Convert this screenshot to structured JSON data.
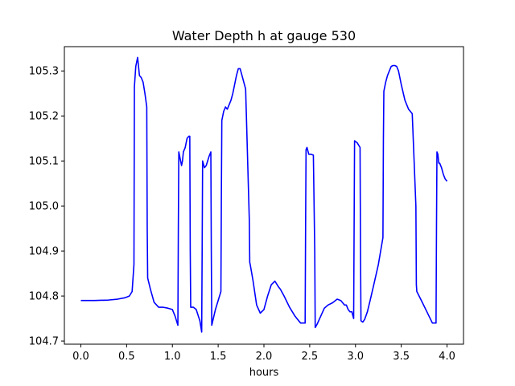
{
  "chart_data": {
    "type": "line",
    "title": "Water Depth h at gauge 530",
    "xlabel": "hours",
    "ylabel": "",
    "xlim": [
      -0.18,
      4.18
    ],
    "ylim": [
      104.693,
      105.354
    ],
    "xticks": [
      0.0,
      0.5,
      1.0,
      1.5,
      2.0,
      2.5,
      3.0,
      3.5,
      4.0
    ],
    "xtick_labels": [
      "0.0",
      "0.5",
      "1.0",
      "1.5",
      "2.0",
      "2.5",
      "3.0",
      "3.5",
      "4.0"
    ],
    "yticks": [
      104.7,
      104.8,
      104.9,
      105.0,
      105.1,
      105.2,
      105.3
    ],
    "ytick_labels": [
      "104.7",
      "104.8",
      "104.9",
      "105.0",
      "105.1",
      "105.2",
      "105.3"
    ],
    "grid": false,
    "legend": "none",
    "series": [
      {
        "color": "#0000ff",
        "x": [
          0.0,
          0.15,
          0.3,
          0.4,
          0.48,
          0.53,
          0.56,
          0.58,
          0.585,
          0.6,
          0.62,
          0.64,
          0.66,
          0.68,
          0.7,
          0.72,
          0.725,
          0.73,
          0.76,
          0.8,
          0.85,
          0.9,
          0.95,
          1.0,
          1.03,
          1.06,
          1.065,
          1.07,
          1.09,
          1.1,
          1.11,
          1.12,
          1.14,
          1.16,
          1.18,
          1.19,
          1.195,
          1.2,
          1.23,
          1.26,
          1.3,
          1.32,
          1.325,
          1.33,
          1.35,
          1.37,
          1.4,
          1.42,
          1.425,
          1.43,
          1.47,
          1.53,
          1.535,
          1.54,
          1.56,
          1.58,
          1.6,
          1.62,
          1.64,
          1.66,
          1.68,
          1.7,
          1.72,
          1.74,
          1.76,
          1.8,
          1.84,
          1.845,
          1.85,
          1.88,
          1.92,
          1.96,
          2.0,
          2.04,
          2.08,
          2.12,
          2.16,
          2.18,
          2.22,
          2.28,
          2.34,
          2.4,
          2.45,
          2.455,
          2.46,
          2.47,
          2.49,
          2.51,
          2.54,
          2.555,
          2.56,
          2.58,
          2.62,
          2.66,
          2.7,
          2.75,
          2.8,
          2.84,
          2.88,
          2.9,
          2.92,
          2.94,
          2.96,
          2.98,
          2.985,
          2.99,
          3.02,
          3.05,
          3.055,
          3.06,
          3.08,
          3.1,
          3.13,
          3.16,
          3.2,
          3.25,
          3.3,
          3.305,
          3.31,
          3.33,
          3.35,
          3.37,
          3.39,
          3.41,
          3.43,
          3.45,
          3.47,
          3.5,
          3.54,
          3.58,
          3.62,
          3.66,
          3.665,
          3.67,
          3.72,
          3.78,
          3.84,
          3.88,
          3.885,
          3.89,
          3.9,
          3.91,
          3.92,
          3.94,
          3.96,
          3.98,
          4.0
        ],
        "y": [
          104.79,
          104.79,
          104.791,
          104.793,
          104.796,
          104.8,
          104.81,
          104.87,
          105.265,
          105.31,
          105.33,
          105.29,
          105.285,
          105.275,
          105.25,
          105.22,
          104.95,
          104.84,
          104.815,
          104.786,
          104.775,
          104.775,
          104.773,
          104.77,
          104.755,
          104.735,
          104.95,
          105.12,
          105.1,
          105.09,
          105.1,
          105.12,
          105.13,
          105.15,
          105.155,
          105.155,
          104.9,
          104.775,
          104.775,
          104.77,
          104.745,
          104.72,
          104.9,
          105.1,
          105.085,
          105.09,
          105.11,
          105.12,
          104.9,
          104.735,
          104.77,
          104.81,
          105.02,
          105.19,
          105.21,
          105.22,
          105.215,
          105.225,
          105.235,
          105.25,
          105.27,
          105.29,
          105.305,
          105.305,
          105.29,
          105.26,
          104.97,
          104.875,
          104.87,
          104.835,
          104.78,
          104.762,
          104.77,
          104.8,
          104.825,
          104.833,
          104.82,
          104.815,
          104.8,
          104.775,
          104.755,
          104.74,
          104.74,
          104.95,
          105.125,
          105.13,
          105.115,
          105.115,
          105.113,
          104.9,
          104.73,
          104.737,
          104.755,
          104.773,
          104.78,
          104.785,
          104.793,
          104.79,
          104.78,
          104.78,
          104.77,
          104.765,
          104.765,
          104.75,
          104.95,
          105.145,
          105.14,
          105.13,
          104.9,
          104.745,
          104.742,
          104.748,
          104.765,
          104.79,
          104.825,
          104.87,
          104.93,
          105.15,
          105.255,
          105.275,
          105.29,
          105.3,
          105.31,
          105.312,
          105.312,
          105.31,
          105.3,
          105.27,
          105.235,
          105.215,
          105.205,
          105.0,
          104.825,
          104.81,
          104.79,
          104.765,
          104.74,
          104.74,
          104.95,
          105.12,
          105.115,
          105.095,
          105.095,
          105.085,
          105.07,
          105.06,
          105.055
        ]
      }
    ]
  }
}
